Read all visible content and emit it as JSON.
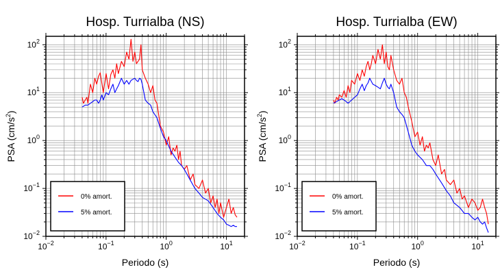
{
  "chart_data": [
    {
      "type": "line",
      "title": "Hosp. Turrialba (NS)",
      "xlabel": "Periodo (s)",
      "ylabel": "PSA (cm/s",
      "ylabel_sup": "2",
      "ylabel_end": ")",
      "xscale": "log",
      "yscale": "log",
      "xlim": [
        0.01,
        20
      ],
      "ylim": [
        0.01,
        150
      ],
      "x_ticks": [
        {
          "base": "10",
          "exp": "−2"
        },
        {
          "base": "10",
          "exp": "−1"
        },
        {
          "base": "10",
          "exp": "0"
        },
        {
          "base": "10",
          "exp": "1"
        }
      ],
      "y_ticks": [
        {
          "base": "10",
          "exp": "−2"
        },
        {
          "base": "10",
          "exp": "−1"
        },
        {
          "base": "10",
          "exp": "0"
        },
        {
          "base": "10",
          "exp": "1"
        },
        {
          "base": "10",
          "exp": "2"
        }
      ],
      "grid": true,
      "legend_position": "bottom-left",
      "series": [
        {
          "name": "0% amort.",
          "color": "#ff0000",
          "x": [
            0.04,
            0.042,
            0.045,
            0.048,
            0.05,
            0.055,
            0.06,
            0.065,
            0.07,
            0.075,
            0.08,
            0.09,
            0.1,
            0.11,
            0.12,
            0.13,
            0.14,
            0.15,
            0.16,
            0.18,
            0.2,
            0.22,
            0.24,
            0.26,
            0.28,
            0.3,
            0.32,
            0.34,
            0.36,
            0.38,
            0.4,
            0.45,
            0.5,
            0.55,
            0.6,
            0.65,
            0.7,
            0.8,
            0.9,
            1.0,
            1.1,
            1.2,
            1.3,
            1.4,
            1.5,
            1.6,
            1.7,
            1.8,
            2.0,
            2.2,
            2.5,
            2.8,
            3.0,
            3.5,
            4.0,
            4.5,
            5.0,
            5.5,
            6.0,
            6.5,
            7.0,
            7.5,
            8.0,
            9.0,
            10.0,
            11.0,
            12.0,
            13.0,
            14.0,
            15.0
          ],
          "values": [
            8,
            6,
            7,
            8,
            6,
            15,
            10,
            20,
            15,
            22,
            26,
            10,
            25,
            12,
            24,
            30,
            20,
            40,
            25,
            45,
            35,
            70,
            50,
            130,
            45,
            70,
            40,
            45,
            50,
            100,
            30,
            20,
            15,
            10,
            14,
            7,
            6,
            2,
            1.5,
            0.8,
            1.2,
            0.5,
            0.7,
            0.6,
            0.8,
            0.4,
            0.6,
            0.3,
            0.25,
            0.3,
            0.15,
            0.2,
            0.12,
            0.1,
            0.15,
            0.08,
            0.1,
            0.05,
            0.07,
            0.04,
            0.06,
            0.03,
            0.05,
            0.025,
            0.04,
            0.06,
            0.03,
            0.04,
            0.028,
            0.025
          ]
        },
        {
          "name": "5% amort.",
          "color": "#0000ff",
          "x": [
            0.04,
            0.045,
            0.05,
            0.055,
            0.06,
            0.065,
            0.07,
            0.075,
            0.08,
            0.085,
            0.09,
            0.1,
            0.11,
            0.12,
            0.13,
            0.14,
            0.15,
            0.16,
            0.18,
            0.2,
            0.22,
            0.24,
            0.26,
            0.28,
            0.3,
            0.32,
            0.34,
            0.36,
            0.38,
            0.4,
            0.45,
            0.5,
            0.55,
            0.6,
            0.7,
            0.8,
            0.9,
            1.0,
            1.2,
            1.4,
            1.6,
            1.8,
            2.0,
            2.5,
            3.0,
            3.5,
            4.0,
            5.0,
            6.0,
            7.0,
            8.0,
            9.0,
            10.0,
            11.0,
            12.0,
            13.0,
            14.0,
            15.0
          ],
          "values": [
            5,
            5.5,
            5.5,
            6,
            6.5,
            7,
            7,
            6,
            7,
            9,
            7,
            10,
            9,
            12,
            15,
            10,
            12,
            14,
            20,
            15,
            18,
            15,
            18,
            19,
            20,
            18,
            17,
            20,
            19,
            15,
            7,
            6,
            5.5,
            4,
            3,
            1.8,
            1.2,
            1.0,
            0.6,
            0.45,
            0.35,
            0.3,
            0.25,
            0.15,
            0.1,
            0.08,
            0.065,
            0.055,
            0.04,
            0.03,
            0.025,
            0.022,
            0.018,
            0.017,
            0.016,
            0.017,
            0.016,
            0.016
          ]
        }
      ]
    },
    {
      "type": "line",
      "title": "Hosp. Turrialba (EW)",
      "xlabel": "Periodo (s)",
      "ylabel": "PSA (cm/s",
      "ylabel_sup": "2",
      "ylabel_end": ")",
      "xscale": "log",
      "yscale": "log",
      "xlim": [
        0.01,
        20
      ],
      "ylim": [
        0.01,
        150
      ],
      "x_ticks": [
        {
          "base": "10",
          "exp": "−2"
        },
        {
          "base": "10",
          "exp": "−1"
        },
        {
          "base": "10",
          "exp": "0"
        },
        {
          "base": "10",
          "exp": "1"
        }
      ],
      "y_ticks": [
        {
          "base": "10",
          "exp": "−2"
        },
        {
          "base": "10",
          "exp": "−1"
        },
        {
          "base": "10",
          "exp": "0"
        },
        {
          "base": "10",
          "exp": "1"
        },
        {
          "base": "10",
          "exp": "2"
        }
      ],
      "grid": true,
      "legend_position": "bottom-left",
      "series": [
        {
          "name": "0% amort.",
          "color": "#ff0000",
          "x": [
            0.04,
            0.042,
            0.045,
            0.048,
            0.05,
            0.055,
            0.06,
            0.065,
            0.07,
            0.075,
            0.08,
            0.09,
            0.1,
            0.11,
            0.12,
            0.13,
            0.14,
            0.15,
            0.16,
            0.17,
            0.18,
            0.2,
            0.22,
            0.24,
            0.26,
            0.28,
            0.3,
            0.32,
            0.34,
            0.36,
            0.4,
            0.45,
            0.5,
            0.55,
            0.6,
            0.65,
            0.7,
            0.8,
            0.9,
            1.0,
            1.1,
            1.2,
            1.3,
            1.4,
            1.5,
            1.6,
            1.8,
            2.0,
            2.2,
            2.5,
            2.8,
            3.0,
            3.5,
            4.0,
            4.5,
            5.0,
            5.5,
            6.0,
            7.0,
            8.0,
            9.0,
            10.0,
            11.0,
            12.0,
            13.0,
            14.0,
            15.0
          ],
          "values": [
            7,
            6,
            8,
            7,
            9,
            8,
            11,
            8,
            14,
            10,
            18,
            15,
            25,
            18,
            30,
            22,
            35,
            45,
            30,
            40,
            60,
            40,
            80,
            50,
            100,
            40,
            70,
            35,
            30,
            60,
            30,
            18,
            15,
            20,
            10,
            8,
            5,
            2.5,
            1.2,
            1.5,
            0.8,
            1.2,
            0.6,
            0.8,
            0.7,
            0.9,
            0.4,
            0.3,
            0.5,
            0.2,
            0.25,
            0.15,
            0.12,
            0.15,
            0.08,
            0.1,
            0.06,
            0.07,
            0.04,
            0.06,
            0.05,
            0.035,
            0.04,
            0.06,
            0.04,
            0.03,
            0.018
          ]
        },
        {
          "name": "5% amort.",
          "color": "#0000ff",
          "x": [
            0.04,
            0.045,
            0.05,
            0.055,
            0.06,
            0.065,
            0.07,
            0.08,
            0.09,
            0.1,
            0.11,
            0.12,
            0.13,
            0.14,
            0.15,
            0.16,
            0.18,
            0.2,
            0.22,
            0.24,
            0.26,
            0.28,
            0.3,
            0.32,
            0.34,
            0.36,
            0.4,
            0.45,
            0.5,
            0.55,
            0.6,
            0.7,
            0.8,
            0.9,
            1.0,
            1.2,
            1.4,
            1.6,
            1.8,
            2.0,
            2.5,
            3.0,
            3.5,
            4.0,
            5.0,
            6.0,
            7.0,
            8.0,
            9.0,
            10.0,
            11.0,
            12.0,
            13.0,
            14.0,
            15.0
          ],
          "values": [
            6,
            6.5,
            7,
            7.5,
            7,
            6.5,
            6,
            7,
            8,
            9,
            12,
            15,
            11,
            14,
            16,
            20,
            15,
            14,
            13,
            12,
            16,
            20,
            15,
            13,
            12,
            15,
            10,
            5,
            4,
            3.5,
            3,
            1.5,
            0.8,
            0.6,
            0.5,
            0.4,
            0.3,
            0.3,
            0.25,
            0.2,
            0.13,
            0.09,
            0.07,
            0.05,
            0.04,
            0.03,
            0.03,
            0.025,
            0.022,
            0.025,
            0.02,
            0.018,
            0.02,
            0.015,
            0.012
          ]
        }
      ]
    }
  ]
}
